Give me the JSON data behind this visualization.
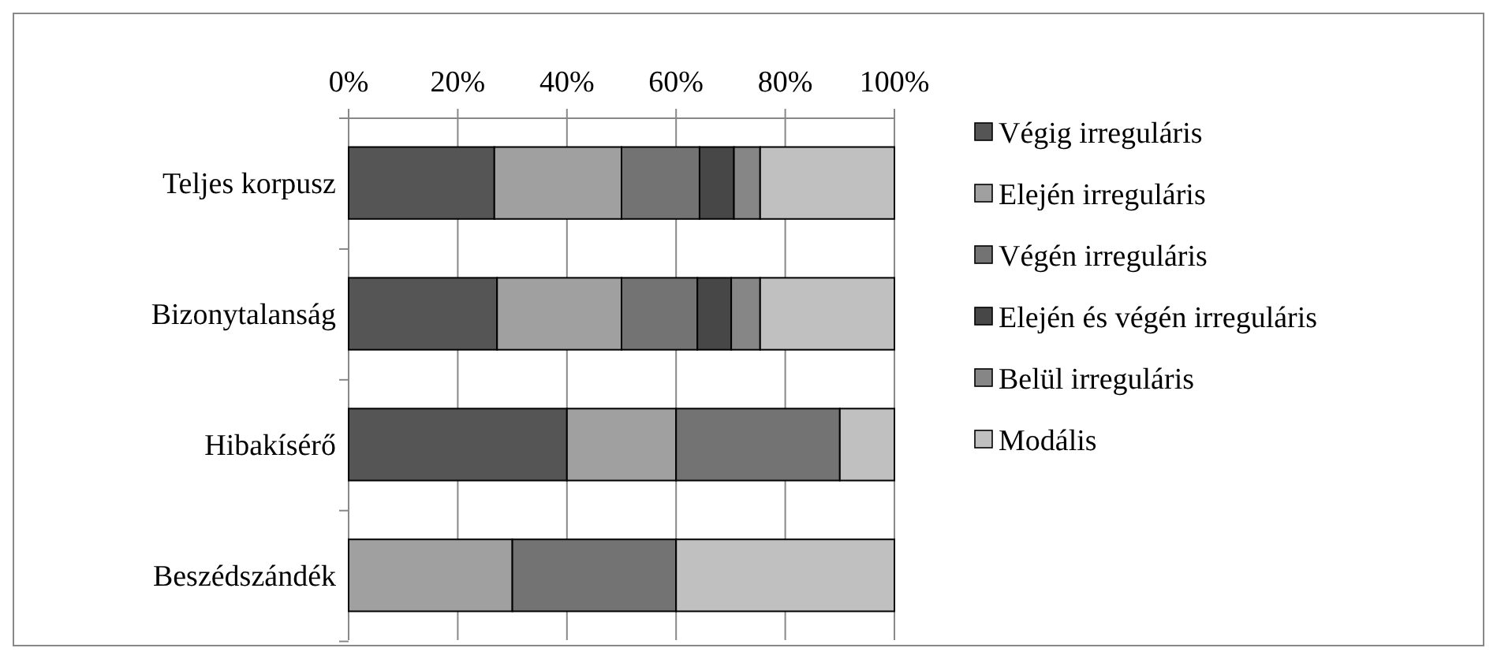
{
  "chart_data": {
    "type": "bar",
    "orientation": "horizontal",
    "stacked": true,
    "categories": [
      "Teljes korpusz",
      "Bizonytalanság",
      "Hibakísérő",
      "Beszédszándék"
    ],
    "series": [
      {
        "name": "Végig irreguláris",
        "color": "#555555",
        "values": [
          26.7,
          27.2,
          40,
          0
        ]
      },
      {
        "name": "Elején irreguláris",
        "color": "#a0a0a0",
        "values": [
          23.3,
          22.8,
          20,
          30
        ]
      },
      {
        "name": "Végén irreguláris",
        "color": "#737373",
        "values": [
          14.3,
          13.9,
          30,
          30
        ]
      },
      {
        "name": "Elején és végén irreguláris",
        "color": "#474747",
        "values": [
          6.3,
          6.2,
          0,
          0
        ]
      },
      {
        "name": "Belül irreguláris",
        "color": "#868686",
        "values": [
          4.8,
          5.3,
          0,
          0
        ]
      },
      {
        "name": "Modális",
        "color": "#c0c0c0",
        "values": [
          24.6,
          24.6,
          10,
          40
        ]
      }
    ],
    "xlim": [
      0,
      100
    ],
    "xticks": [
      {
        "value": 0,
        "label": "0%"
      },
      {
        "value": 20,
        "label": "20%"
      },
      {
        "value": 40,
        "label": "40%"
      },
      {
        "value": 60,
        "label": "60%"
      },
      {
        "value": 80,
        "label": "80%"
      },
      {
        "value": 100,
        "label": "100%"
      }
    ],
    "grid": "x",
    "legend": "right"
  }
}
